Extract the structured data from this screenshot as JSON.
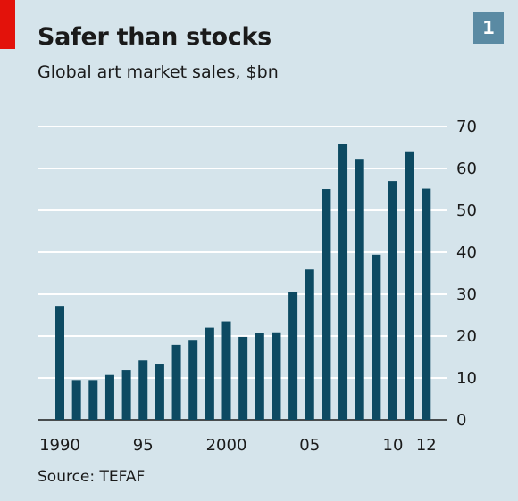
{
  "header": {
    "title": "Safer than stocks",
    "subtitle": "Global art market sales, $bn",
    "badge": "1"
  },
  "footer": {
    "source": "Source: TEFAF"
  },
  "colors": {
    "bar": "#0d4a62",
    "background": "#d5e4eb",
    "grid": "#ffffff",
    "accent": "#e3120b",
    "badge": "#5a8aa3"
  },
  "chart_data": {
    "type": "bar",
    "categories": [
      "1990",
      "1991",
      "1992",
      "1993",
      "1994",
      "1995",
      "1996",
      "1997",
      "1998",
      "1999",
      "2000",
      "2001",
      "2002",
      "2003",
      "2004",
      "2005",
      "2006",
      "2007",
      "2008",
      "2009",
      "2010",
      "2011",
      "2012"
    ],
    "values": [
      27.2,
      9.5,
      9.5,
      10.7,
      11.9,
      14.2,
      13.4,
      17.9,
      19.1,
      22.0,
      23.5,
      19.8,
      20.7,
      20.9,
      30.5,
      35.9,
      55.1,
      65.9,
      62.3,
      39.4,
      57.0,
      64.1,
      55.2
    ],
    "x_tick_labels": [
      {
        "index": 0,
        "label": "1990"
      },
      {
        "index": 5,
        "label": "95"
      },
      {
        "index": 10,
        "label": "2000"
      },
      {
        "index": 15,
        "label": "05"
      },
      {
        "index": 20,
        "label": "10"
      },
      {
        "index": 22,
        "label": "12"
      }
    ],
    "y_ticks": [
      0,
      10,
      20,
      30,
      40,
      50,
      60,
      70
    ],
    "ylim": [
      0,
      70
    ],
    "y_axis_side": "right",
    "grid": true
  }
}
